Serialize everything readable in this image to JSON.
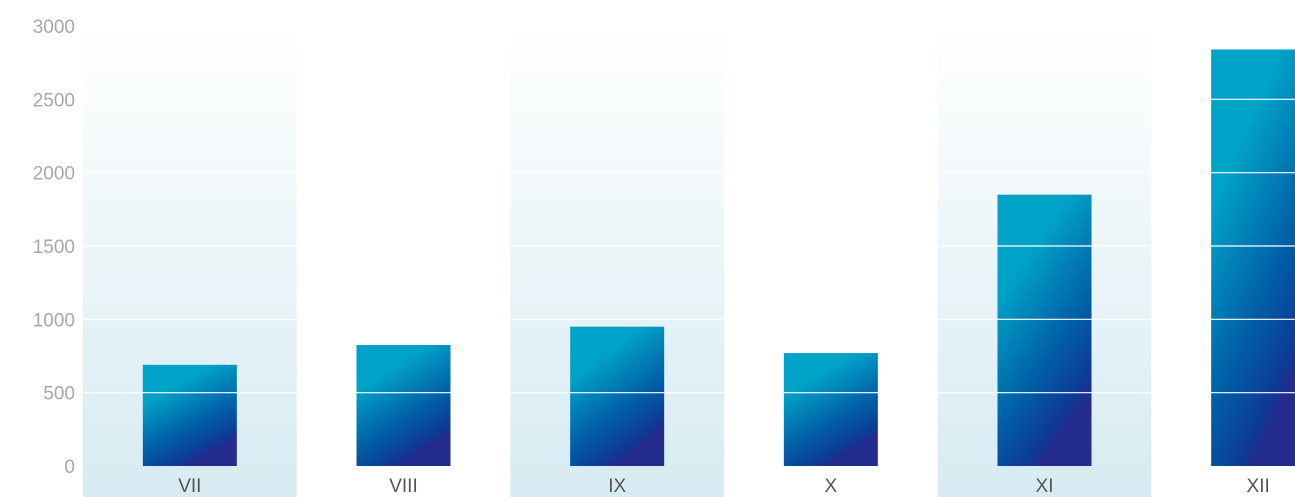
{
  "chart_data": {
    "type": "bar",
    "categories": [
      "VII",
      "VIII",
      "IX",
      "X",
      "XI",
      "XII"
    ],
    "values": [
      690,
      825,
      950,
      770,
      1850,
      2840
    ],
    "ylim": [
      0,
      3000
    ],
    "yticks": [
      0,
      500,
      1000,
      1500,
      2000,
      2500,
      3000
    ],
    "grid": true,
    "alternating_band_color": "#d6ebf2",
    "bar_color_top": "#00a3c8",
    "bar_color_bottom": "#232b8c",
    "gridline_color": "#ffffff"
  }
}
